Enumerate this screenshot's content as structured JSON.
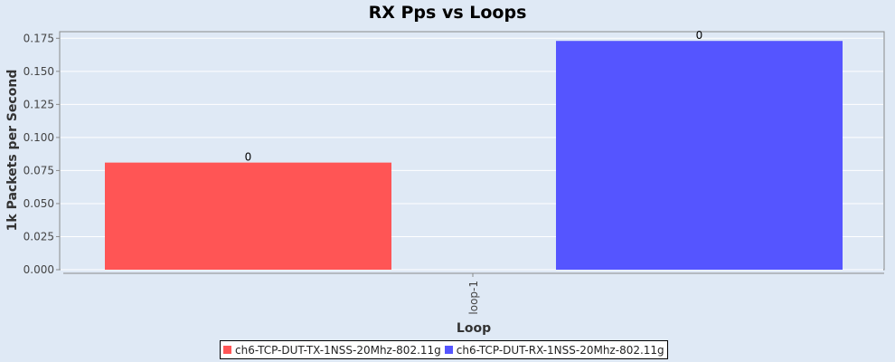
{
  "chart_data": {
    "type": "bar",
    "title": "RX Pps vs Loops",
    "xlabel": "Loop",
    "ylabel": "1k Packets per Second",
    "categories": [
      "loop-1"
    ],
    "ylim": [
      0,
      0.18
    ],
    "yticks": [
      "0.000",
      "0.025",
      "0.050",
      "0.075",
      "0.100",
      "0.125",
      "0.150",
      "0.175"
    ],
    "grid": true,
    "legend_position": "bottom",
    "series": [
      {
        "name": "ch6-TCP-DUT-TX-1NSS-20Mhz-802.11g",
        "values": [
          0.081
        ],
        "data_labels": [
          "0"
        ],
        "color": "#ff5555"
      },
      {
        "name": "ch6-TCP-DUT-RX-1NSS-20Mhz-802.11g",
        "values": [
          0.173
        ],
        "data_labels": [
          "0"
        ],
        "color": "#5555ff"
      }
    ]
  }
}
